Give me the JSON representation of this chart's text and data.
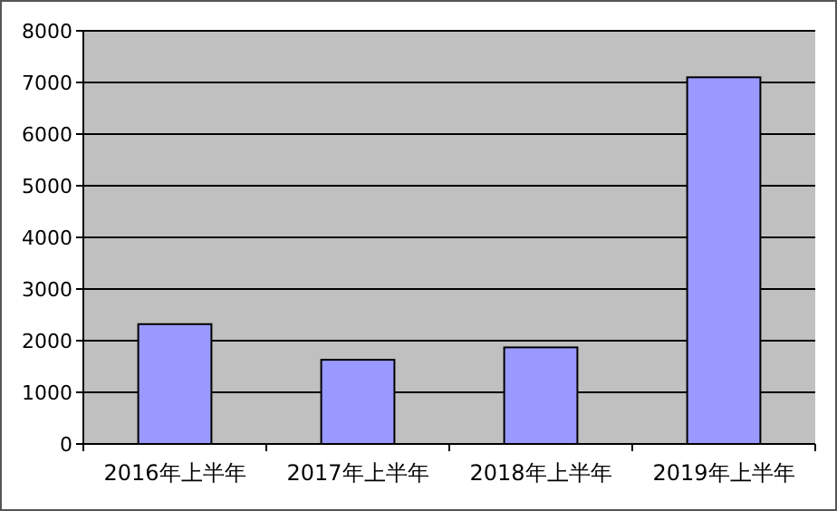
{
  "chart_data": {
    "type": "bar",
    "categories": [
      "2016年上半年",
      "2017年上半年",
      "2018年上半年",
      "2019年上半年"
    ],
    "values": [
      2320,
      1630,
      1870,
      7100
    ],
    "color": "#9999ff",
    "ylim": [
      0,
      8000
    ],
    "yticks": [
      0,
      1000,
      2000,
      3000,
      4000,
      5000,
      6000,
      7000,
      8000
    ],
    "grid": "y"
  }
}
